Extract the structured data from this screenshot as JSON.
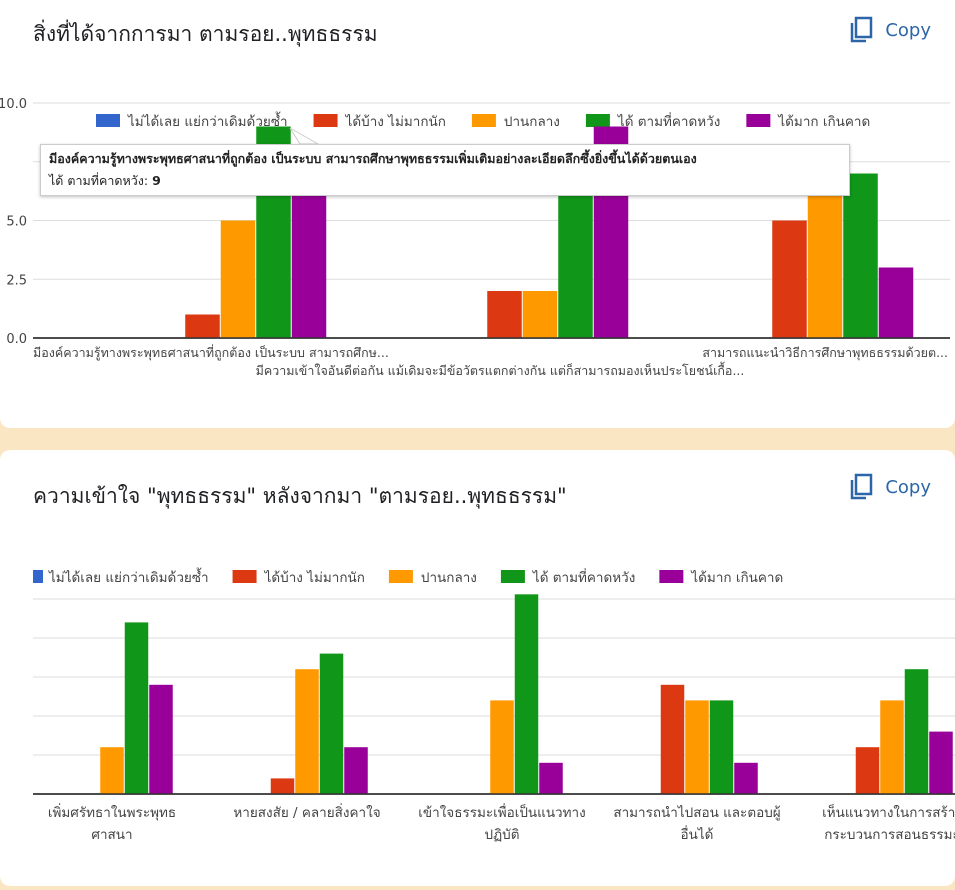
{
  "copy_label": "Copy",
  "colors": [
    "#3366cc",
    "#dc3912",
    "#ff9900",
    "#109618",
    "#990099"
  ],
  "chart_data": [
    {
      "type": "bar",
      "title": "สิ่งที่ได้จากการมา ตามรอย..พุทธธรรม",
      "legend": [
        "ไม่ได้เลย แย่กว่าเดิมด้วยซ้ำ",
        "ได้บ้าง ไม่มากนัก",
        "ปานกลาง",
        "ได้ ตามที่คาดหวัง",
        "ได้มาก เกินคาด"
      ],
      "legend_position": "top",
      "categories": [
        "มีองค์ความรู้ทางพระพุทธศาสนาที่ถูกต้อง เป็นระบบ สามารถศึกษ...",
        "มีความเข้าใจอันดีต่อกัน แม้เดิมจะมีข้อวัตรแตกต่างกัน แต่ก็สามารถมองเห็นประโยชน์เกื้อ...",
        "สามารถแนะนำวิธีการศึกษาพุทธธรรมด้วยต..."
      ],
      "series": [
        {
          "name": "ไม่ได้เลย แย่กว่าเดิมด้วยซ้ำ",
          "values": [
            0,
            0,
            0
          ]
        },
        {
          "name": "ได้บ้าง ไม่มากนัก",
          "values": [
            1,
            2,
            5
          ]
        },
        {
          "name": "ปานกลาง",
          "values": [
            5,
            2,
            7
          ]
        },
        {
          "name": "ได้ ตามที่คาดหวัง",
          "values": [
            9,
            8,
            7
          ]
        },
        {
          "name": "ได้มาก เกินคาด",
          "values": [
            8,
            9,
            3
          ]
        }
      ],
      "yticks": [
        "0.0",
        "2.5",
        "5.0",
        "7.5",
        "10.0"
      ],
      "ylim": [
        0,
        10
      ],
      "yticks_visible": [
        "0.0",
        "2.5",
        "5.0",
        "10.0"
      ],
      "grid": true,
      "tooltip": {
        "title": "มีองค์ความรู้ทางพระพุทธศาสนาที่ถูกต้อง เป็นระบบ สามารถศึกษาพุทธธรรมเพิ่มเติมอย่างละเอียดลึกซึ้งยิ่งขึ้นได้ด้วยตนเอง",
        "label": "ได้ ตามที่คาดหวัง:",
        "value": "9"
      }
    },
    {
      "type": "bar",
      "title": "ความเข้าใจ \"พุทธธรรม\" หลังจากมา \"ตามรอย..พุทธธรรม\"",
      "legend": [
        "ไม่ได้เลย แย่กว่าเดิมด้วยซ้ำ",
        "ได้บ้าง ไม่มากนัก",
        "ปานกลาง",
        "ได้ ตามที่คาดหวัง",
        "ได้มาก เกินคาด"
      ],
      "legend_position": "top",
      "categories": [
        [
          "เพิ่มศรัทธาในพระพุทธ",
          "ศาสนา"
        ],
        [
          "หายสงสัย / คลายสิ่งคาใจ"
        ],
        [
          "เข้าใจธรรมะเพื่อเป็นแนวทาง",
          "ปฏิบัติ"
        ],
        [
          "สามารถนำไปสอน และตอบผู้",
          "อื่นได้"
        ],
        [
          "เห็นแนวทางในการสร้าง",
          "กระบวนการสอนธรรมะ"
        ]
      ],
      "series": [
        {
          "name": "ไม่ได้เลย แย่กว่าเดิมด้วยซ้ำ",
          "values": [
            0,
            0,
            0,
            0,
            0
          ]
        },
        {
          "name": "ได้บ้าง ไม่มากนัก",
          "values": [
            0,
            1,
            0,
            7,
            3
          ]
        },
        {
          "name": "ปานกลาง",
          "values": [
            3,
            8,
            6,
            6,
            6
          ]
        },
        {
          "name": "ได้ ตามที่คาดหวัง",
          "values": [
            11,
            9,
            13,
            6,
            8
          ]
        },
        {
          "name": "ได้มาก เกินคาด",
          "values": [
            7,
            3,
            2,
            2,
            4
          ]
        }
      ],
      "ylim": [
        0,
        12.5
      ],
      "grid": true
    }
  ]
}
